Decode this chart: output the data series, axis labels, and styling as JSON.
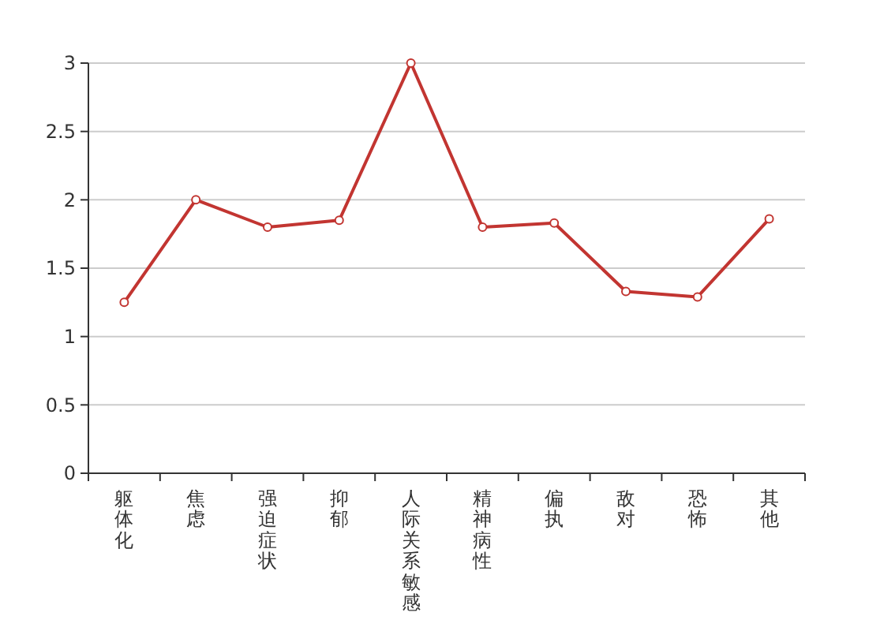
{
  "chart_data": {
    "type": "line",
    "categories": [
      "躯体化",
      "焦虑",
      "强迫症状",
      "抑郁",
      "人际关系敏感",
      "精神病性",
      "偏执",
      "敌对",
      "恐怖",
      "其他"
    ],
    "series": [
      {
        "color": "#c23531",
        "values": [
          1.25,
          2.0,
          1.8,
          1.85,
          3.0,
          1.8,
          1.83,
          1.33,
          1.29,
          1.86
        ]
      }
    ],
    "ylim": [
      0,
      3
    ],
    "yticks": [
      0,
      0.5,
      1,
      1.5,
      2,
      2.5,
      3
    ],
    "grid": "y",
    "marker": "circle",
    "line_style": "solid"
  }
}
